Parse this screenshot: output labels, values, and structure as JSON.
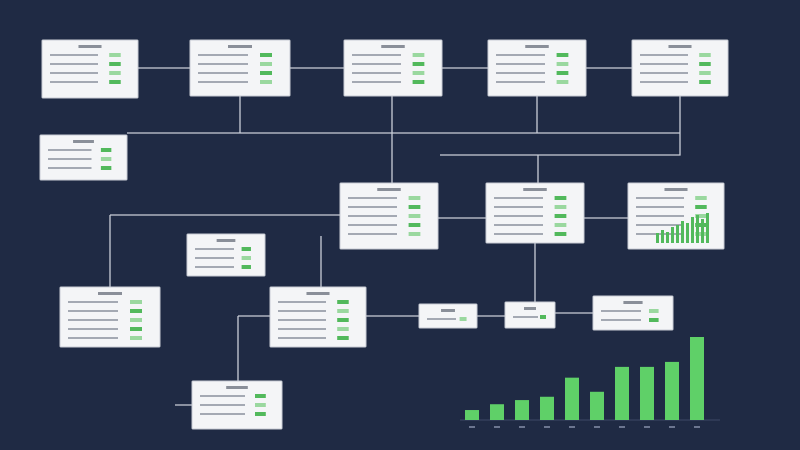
{
  "chart_data": {
    "type": "bar",
    "values": [
      12,
      19,
      24,
      28,
      51,
      34,
      64,
      64,
      70,
      100
    ],
    "color": "#5fd068",
    "ylim": [
      0,
      100
    ]
  }
}
